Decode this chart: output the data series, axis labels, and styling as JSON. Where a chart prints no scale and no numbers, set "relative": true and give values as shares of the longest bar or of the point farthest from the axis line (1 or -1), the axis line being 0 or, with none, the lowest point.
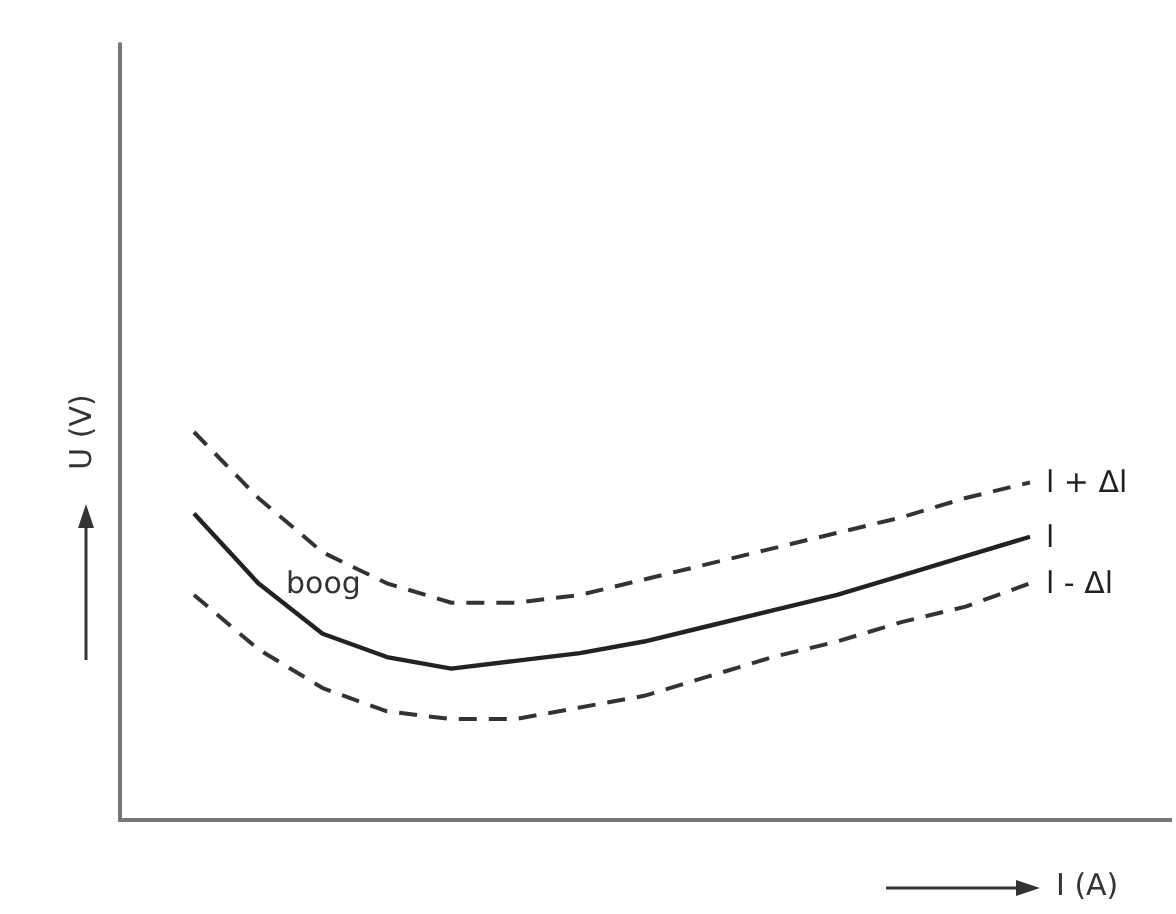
{
  "chart_data": {
    "type": "line",
    "relative": true,
    "xlabel": "I (A)",
    "ylabel": "U (V)",
    "legend": false,
    "grid": false,
    "marker": "none",
    "categories": [
      null,
      null,
      null,
      null,
      null,
      null,
      null,
      null,
      null,
      null,
      null,
      null,
      null,
      null
    ],
    "series": [
      {
        "name": "l + Δl",
        "color": "#333333",
        "line_style": "dashed",
        "values": [
          1,
          0.83,
          0.69,
          0.61,
          0.56,
          0.56,
          0.58,
          0.62,
          0.66,
          0.7,
          0.74,
          0.78,
          0.83,
          0.87
        ]
      },
      {
        "name": "l",
        "color": "#222222",
        "line_style": "solid",
        "values": [
          0.79,
          0.61,
          0.48,
          0.42,
          0.39,
          0.41,
          0.43,
          0.46,
          0.5,
          0.54,
          0.58,
          0.63,
          0.68,
          0.73
        ]
      },
      {
        "name": "l - Δl",
        "color": "#333333",
        "line_style": "dashed",
        "values": [
          0.58,
          0.44,
          0.34,
          0.28,
          0.26,
          0.26,
          0.29,
          0.32,
          0.37,
          0.42,
          0.46,
          0.51,
          0.55,
          0.61
        ]
      }
    ],
    "annotations": [
      "boog"
    ]
  }
}
